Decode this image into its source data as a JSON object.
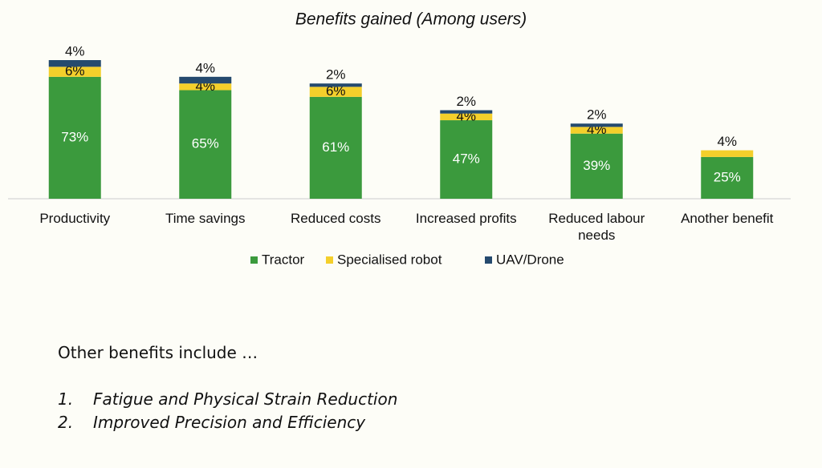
{
  "chart_data": {
    "type": "stacked-bar",
    "title": "Benefits gained (Among users)",
    "categories": [
      "Productivity",
      "Time savings",
      "Reduced costs",
      "Increased profits",
      "Reduced labour needs",
      "Another benefit"
    ],
    "series": [
      {
        "name": "Tractor",
        "color": "#3b9a3d",
        "values": [
          73,
          65,
          61,
          47,
          39,
          25
        ],
        "value_labels": [
          "73%",
          "65%",
          "61%",
          "47%",
          "39%",
          "25%"
        ]
      },
      {
        "name": "Specialised robot",
        "color": "#f4cf2b",
        "values": [
          6,
          4,
          6,
          4,
          4,
          4
        ],
        "value_labels": [
          "6%",
          "4%",
          "6%",
          "4%",
          "4%",
          "4%"
        ]
      },
      {
        "name": "UAV/Drone",
        "color": "#254a6e",
        "values": [
          4,
          4,
          2,
          2,
          2,
          null
        ],
        "value_labels": [
          "4%",
          "4%",
          "2%",
          "2%",
          "2%",
          null
        ]
      }
    ],
    "legend": "bottom"
  },
  "notes": {
    "intro": "Other benefits include …",
    "items": [
      {
        "marker": "1.",
        "text": "Fatigue and Physical Strain Reduction"
      },
      {
        "marker": "2.",
        "text": "Improved Precision and Efficiency"
      }
    ]
  }
}
